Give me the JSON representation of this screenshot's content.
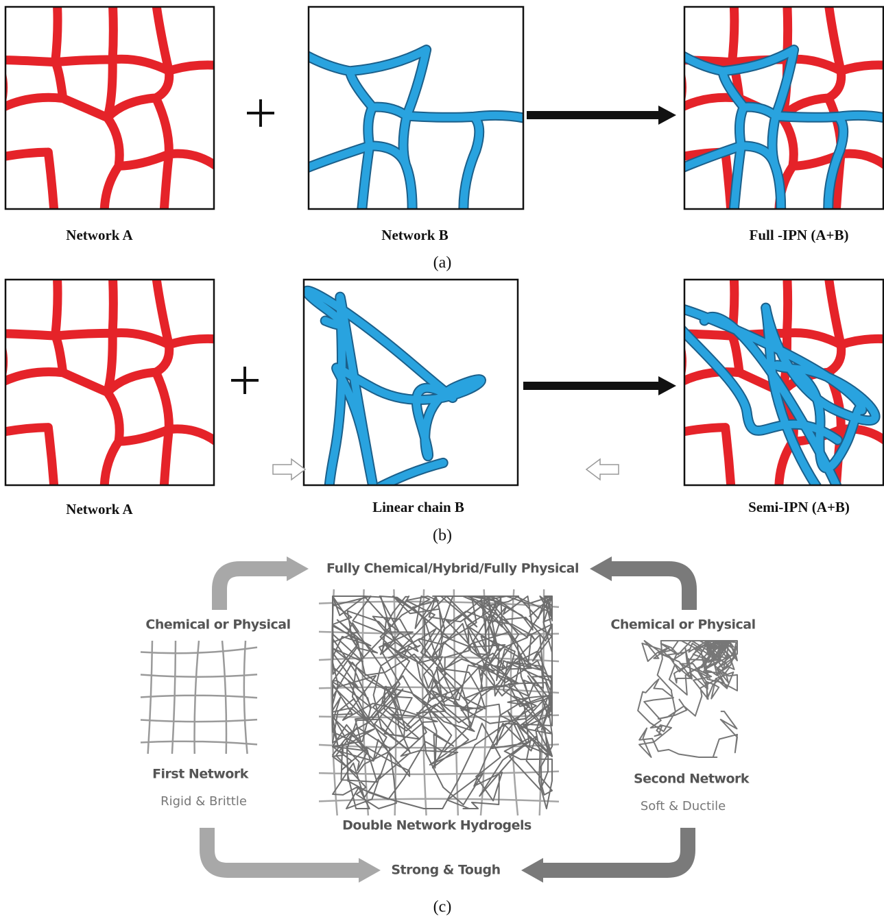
{
  "panel_a": {
    "left_label": "Network A",
    "middle_label": "Network B",
    "right_label": "Full -IPN (A+B)",
    "caption": "(a)"
  },
  "panel_b": {
    "left_label": "Network A",
    "middle_label": "Linear chain B",
    "right_label": "Semi-IPN (A+B)",
    "caption": "(b)"
  },
  "panel_c": {
    "top_label": "Fully Chemical/Hybrid/Fully Physical",
    "left_heading": "Chemical or Physical",
    "right_heading": "Chemical or Physical",
    "first_network": "First Network",
    "first_network_property": "Rigid & Brittle",
    "center_label": "Double Network Hydrogels",
    "second_network": "Second Network",
    "second_network_property": "Soft & Ductile",
    "bottom_label": "Strong & Tough",
    "caption": "(c)"
  }
}
